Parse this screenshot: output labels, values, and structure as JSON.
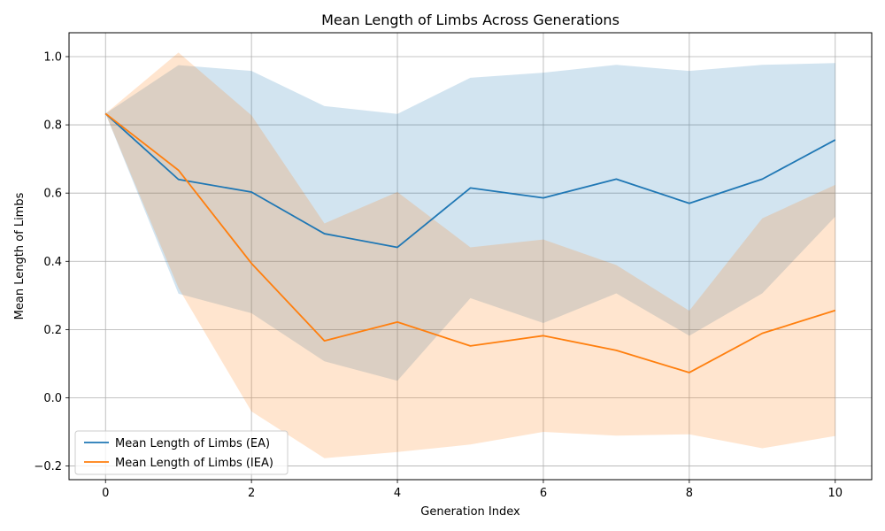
{
  "chart_data": {
    "type": "line",
    "title": "Mean Length of Limbs Across Generations",
    "xlabel": "Generation Index",
    "ylabel": "Mean Length of Limbs",
    "xlim": [
      -0.5,
      10.5
    ],
    "ylim": [
      -0.24,
      1.07
    ],
    "xticks": [
      0,
      2,
      4,
      6,
      8,
      10
    ],
    "yticks": [
      -0.2,
      0.0,
      0.2,
      0.4,
      0.6,
      0.8,
      1.0
    ],
    "grid": true,
    "legend_position": "lower-left",
    "x": [
      0,
      1,
      2,
      3,
      4,
      5,
      6,
      7,
      8,
      9,
      10
    ],
    "series": [
      {
        "name": "Mean Length of Limbs (EA)",
        "color": "#1f77b4",
        "band_color": "#1f77b4",
        "values": [
          0.833,
          0.64,
          0.603,
          0.481,
          0.441,
          0.615,
          0.586,
          0.641,
          0.57,
          0.641,
          0.756
        ],
        "upper": [
          0.833,
          0.975,
          0.958,
          0.855,
          0.832,
          0.938,
          0.953,
          0.976,
          0.958,
          0.976,
          0.981
        ],
        "lower": [
          0.833,
          0.305,
          0.248,
          0.107,
          0.05,
          0.292,
          0.219,
          0.306,
          0.182,
          0.306,
          0.531
        ]
      },
      {
        "name": "Mean Length of Limbs (IEA)",
        "color": "#ff7f0e",
        "band_color": "#ff7f0e",
        "values": [
          0.833,
          0.667,
          0.394,
          0.167,
          0.222,
          0.152,
          0.182,
          0.139,
          0.074,
          0.189,
          0.256
        ],
        "upper": [
          0.833,
          1.012,
          0.828,
          0.511,
          0.603,
          0.441,
          0.464,
          0.389,
          0.255,
          0.526,
          0.624
        ],
        "lower": [
          0.833,
          0.322,
          -0.04,
          -0.177,
          -0.159,
          -0.137,
          -0.1,
          -0.111,
          -0.107,
          -0.148,
          -0.112
        ]
      }
    ]
  }
}
